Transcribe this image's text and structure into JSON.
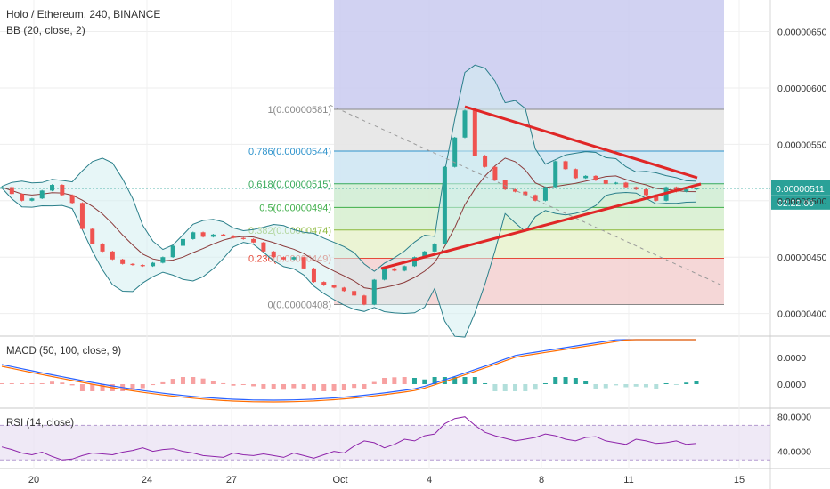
{
  "header": {
    "title": "Holo / Ethereum, 240, BINANCE",
    "indicator": "BB (20, close, 2)"
  },
  "macd_label": "MACD (50, 100, close, 9)",
  "rsi_label": "RSI (14, close)",
  "colors": {
    "up": "#26a69a",
    "down": "#ef5350",
    "bb_fill": "#d4eef0",
    "bb_line": "#2a7f8a",
    "trend": "#e02727",
    "fib_top": "#c9caf0",
    "price_line": "#2aa198"
  },
  "chart_data": [
    {
      "type": "candlestick",
      "title": "Holo / Ethereum, 240, BINANCE",
      "ylim": [
        3.8e-06,
        6.78e-06
      ],
      "y_ticks": [
        "0.00000650",
        "0.00000600",
        "0.00000550",
        "0.00000500",
        "0.00000450",
        "0.00000400"
      ],
      "x_ticks": [
        "20",
        "24",
        "27",
        "Oct",
        "4",
        "8",
        "11",
        "15"
      ],
      "current_price": "0.00000511",
      "countdown": "02:22:00",
      "fib_levels": [
        {
          "label": "1(0.00000581)",
          "value": 5.81e-06,
          "color": "#888888"
        },
        {
          "label": "0.786(0.00000544)",
          "value": 5.44e-06,
          "color": "#2e93cc"
        },
        {
          "label": "0.618(0.00000515)",
          "value": 5.15e-06,
          "color": "#36a95a"
        },
        {
          "label": "0.5(0.00000494)",
          "value": 4.94e-06,
          "color": "#3fae49"
        },
        {
          "label": "0.382(0.00000474)",
          "value": 4.74e-06,
          "color": "#8bb83a"
        },
        {
          "label": "0.236(0.00000449)",
          "value": 4.49e-06,
          "color": "#e64a3a"
        },
        {
          "label": "0(0.00000408)",
          "value": 4.08e-06,
          "color": "#888888"
        }
      ],
      "series_close": [
        5.12e-06,
        5.06e-06,
        5e-06,
        5.02e-06,
        5.09e-06,
        5.14e-06,
        5.05e-06,
        4.98e-06,
        4.75e-06,
        4.62e-06,
        4.55e-06,
        4.48e-06,
        4.44e-06,
        4.43e-06,
        4.42e-06,
        4.45e-06,
        4.5e-06,
        4.6e-06,
        4.66e-06,
        4.72e-06,
        4.68e-06,
        4.7e-06,
        4.69e-06,
        4.67e-06,
        4.66e-06,
        4.63e-06,
        4.55e-06,
        4.5e-06,
        4.48e-06,
        4.5e-06,
        4.4e-06,
        4.28e-06,
        4.25e-06,
        4.23e-06,
        4.2e-06,
        4.16e-06,
        4.08e-06,
        4.3e-06,
        4.4e-06,
        4.38e-06,
        4.42e-06,
        4.5e-06,
        4.55e-06,
        4.62e-06,
        5.3e-06,
        5.56e-06,
        5.8e-06,
        5.4e-06,
        5.3e-06,
        5.18e-06,
        5.1e-06,
        5.08e-06,
        5.05e-06,
        5e-06,
        5.12e-06,
        5.35e-06,
        5.28e-06,
        5.2e-06,
        5.22e-06,
        5.18e-06,
        5.15e-06,
        5.16e-06,
        5.12e-06,
        5.1e-06,
        5.05e-06,
        5e-06,
        5.12e-06,
        5.08e-06,
        5.1e-06,
        5.11e-06
      ]
    },
    {
      "type": "line",
      "title": "MACD (50, 100, close, 9)",
      "y_ticks": [
        "0.0000",
        "0.0000"
      ]
    },
    {
      "type": "line",
      "title": "RSI (14, close)",
      "ylim": [
        20,
        90
      ],
      "y_ticks": [
        "80.0000",
        "40.0000"
      ],
      "series": [
        {
          "values": [
            45,
            42,
            38,
            36,
            39,
            34,
            30,
            31,
            35,
            38,
            37,
            36,
            39,
            41,
            44,
            40,
            42,
            43,
            40,
            38,
            35,
            34,
            33,
            38,
            36,
            35,
            37,
            35,
            33,
            38,
            35,
            32,
            36,
            40,
            38,
            46,
            52,
            50,
            44,
            48,
            54,
            52,
            58,
            60,
            72,
            78,
            80,
            70,
            62,
            58,
            55,
            52,
            54,
            56,
            60,
            58,
            54,
            52,
            56,
            57,
            52,
            50,
            48,
            54,
            52,
            49,
            50,
            52,
            48,
            49
          ]
        }
      ]
    }
  ]
}
